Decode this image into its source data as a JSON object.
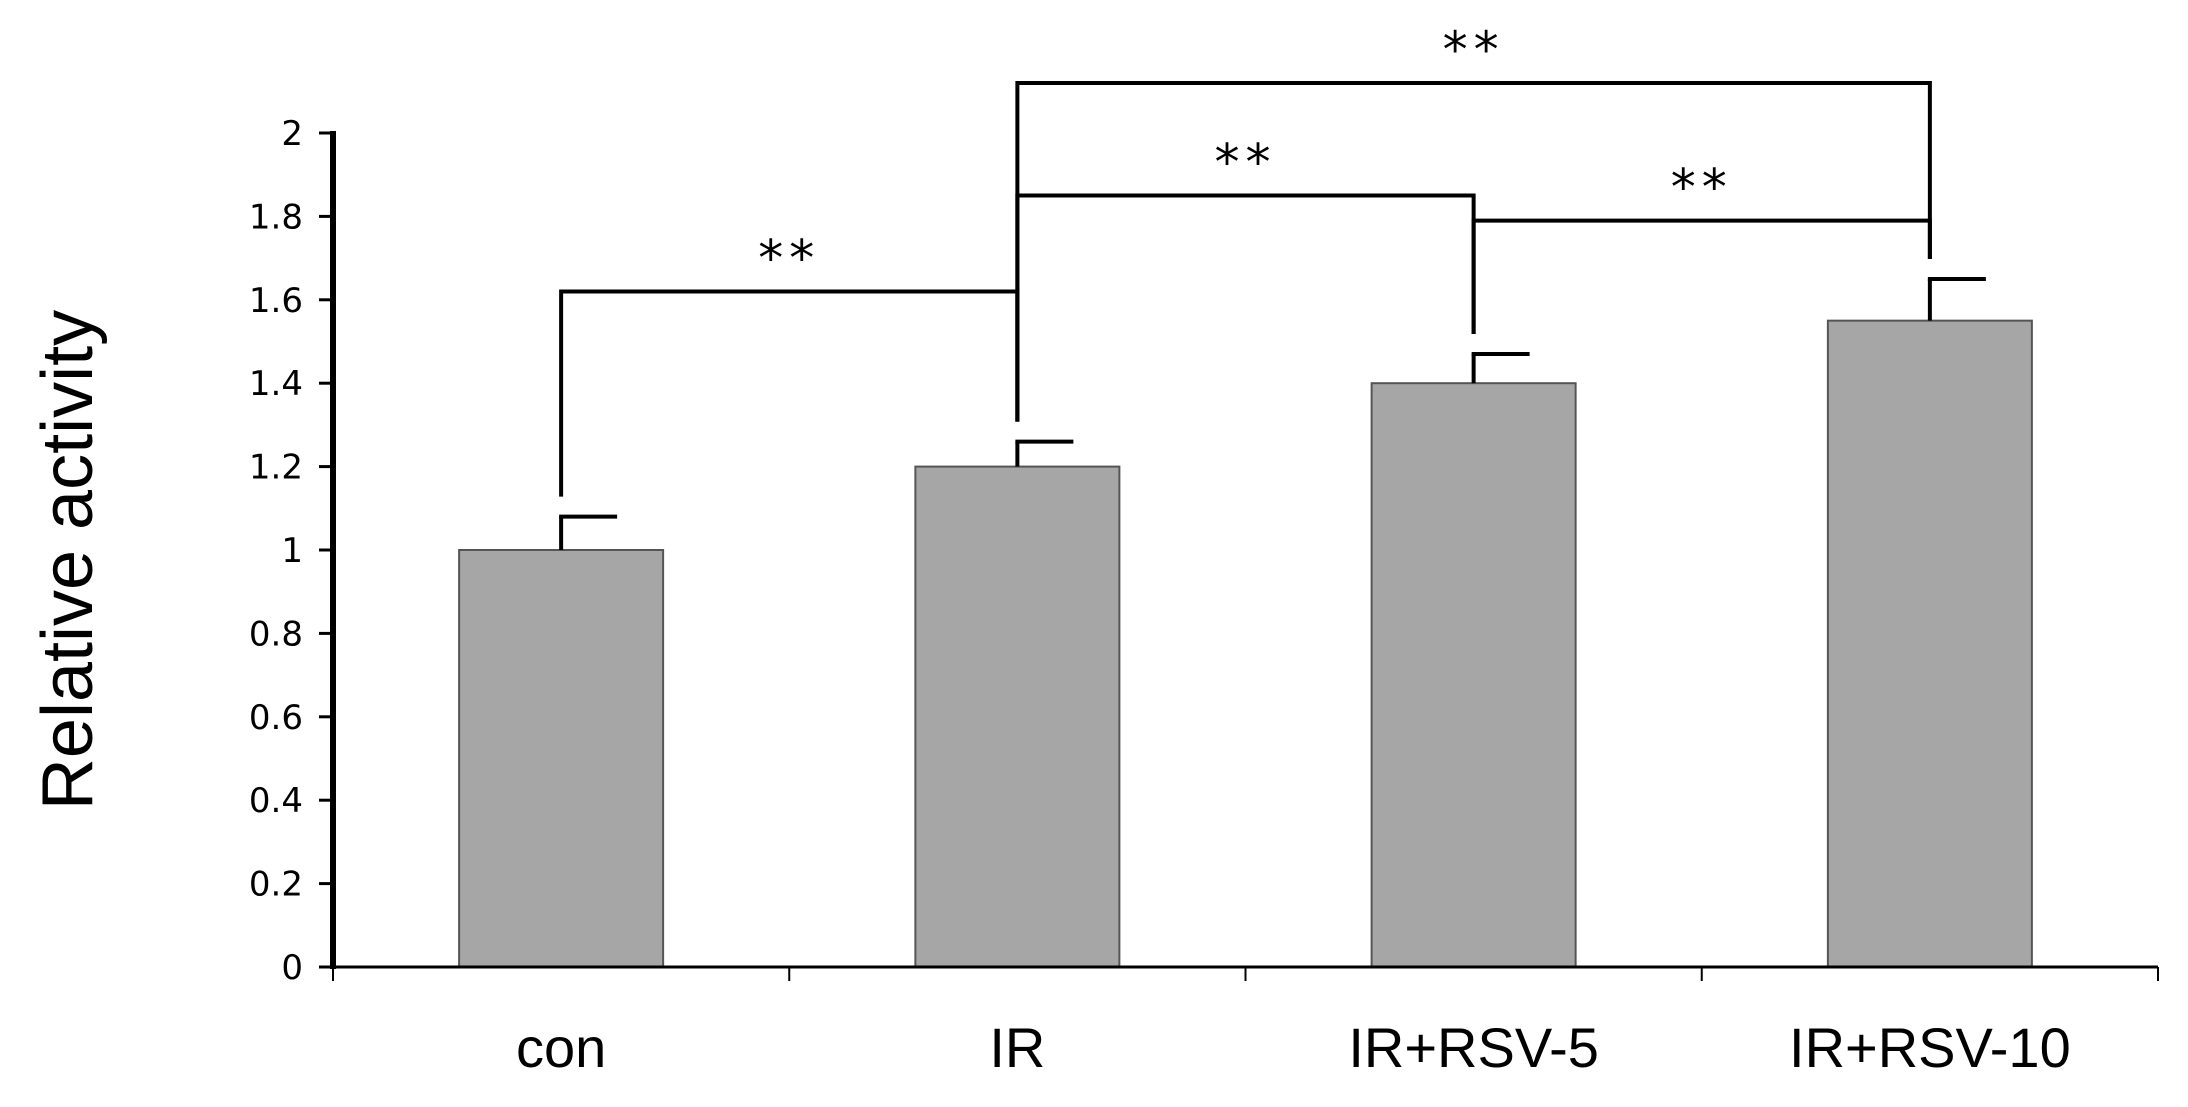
{
  "chart_data": {
    "type": "bar",
    "title": "",
    "xlabel": "",
    "ylabel": "Relative activity",
    "categories": [
      "con",
      "IR",
      "IR+RSV-5",
      "IR+RSV-10"
    ],
    "values": [
      1.0,
      1.2,
      1.4,
      1.55
    ],
    "errors": [
      0.08,
      0.06,
      0.07,
      0.1
    ],
    "ylim": [
      0,
      2
    ],
    "yticks": [
      0,
      0.2,
      0.4,
      0.6,
      0.8,
      1,
      1.2,
      1.4,
      1.6,
      1.8,
      2
    ],
    "ytick_labels": [
      "0",
      "0.2",
      "0.4",
      "0.6",
      "0.8",
      "1",
      "1.2",
      "1.4",
      "1.6",
      "1.8",
      "2"
    ],
    "grid": false,
    "legend": "none",
    "bar_color": "#a6a6a6",
    "significance": [
      {
        "from": "con",
        "to": "IR",
        "label": "**",
        "bracket_level": 1.62
      },
      {
        "from": "IR",
        "to": "IR+RSV-5",
        "label": "**",
        "bracket_level": 1.85
      },
      {
        "from": "IR+RSV-5",
        "to": "IR+RSV-10",
        "label": "**",
        "bracket_level": 1.79
      },
      {
        "from": "IR",
        "to": "IR+RSV-10",
        "label": "**",
        "bracket_level": 2.12
      }
    ]
  }
}
